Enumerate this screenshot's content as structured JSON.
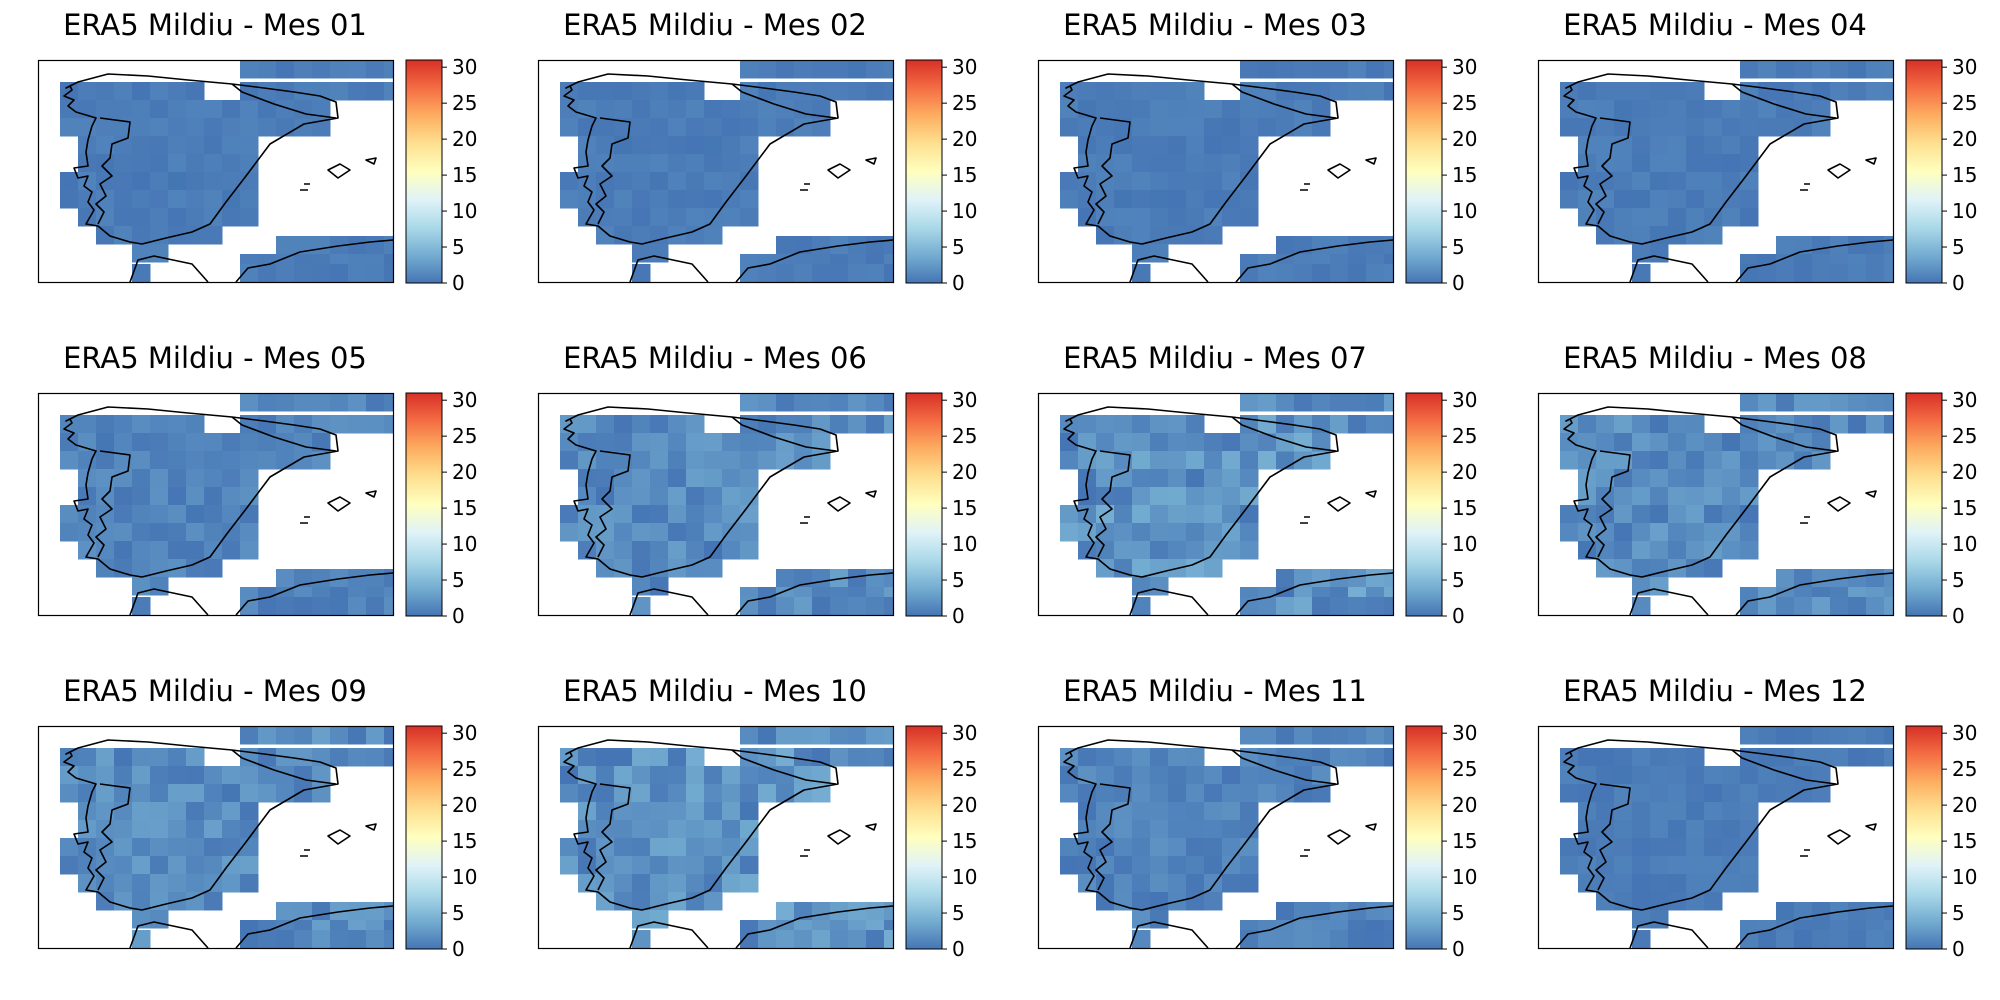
{
  "colors": {
    "background": "#ffffff",
    "coastline": "#000000",
    "colorbar_stops": [
      "#4575b4",
      "#74add1",
      "#abd9e9",
      "#e0f3f8",
      "#ffffbf",
      "#fee090",
      "#fdae61",
      "#f46d43",
      "#d73027"
    ]
  },
  "chart_data": [
    {
      "type": "heatmap",
      "title": "ERA5 Mildiu - Mes 01",
      "colorbar": {
        "ticks": [
          "0",
          "5",
          "10",
          "15",
          "20",
          "25",
          "30"
        ],
        "range": [
          0,
          31
        ]
      },
      "value_range_approx": [
        0,
        1
      ]
    },
    {
      "type": "heatmap",
      "title": "ERA5 Mildiu - Mes 02",
      "colorbar": {
        "ticks": [
          "0",
          "5",
          "10",
          "15",
          "20",
          "25",
          "30"
        ],
        "range": [
          0,
          31
        ]
      },
      "value_range_approx": [
        0,
        1
      ]
    },
    {
      "type": "heatmap",
      "title": "ERA5 Mildiu - Mes 03",
      "colorbar": {
        "ticks": [
          "0",
          "5",
          "10",
          "15",
          "20",
          "25",
          "30"
        ],
        "range": [
          0,
          31
        ]
      },
      "value_range_approx": [
        0,
        1
      ]
    },
    {
      "type": "heatmap",
      "title": "ERA5 Mildiu - Mes 04",
      "colorbar": {
        "ticks": [
          "0",
          "5",
          "10",
          "15",
          "20",
          "25",
          "30"
        ],
        "range": [
          0,
          31
        ]
      },
      "value_range_approx": [
        0,
        1
      ]
    },
    {
      "type": "heatmap",
      "title": "ERA5 Mildiu - Mes 05",
      "colorbar": {
        "ticks": [
          "0",
          "5",
          "10",
          "15",
          "20",
          "25",
          "30"
        ],
        "range": [
          0,
          31
        ]
      },
      "value_range_approx": [
        0,
        2
      ]
    },
    {
      "type": "heatmap",
      "title": "ERA5 Mildiu - Mes 06",
      "colorbar": {
        "ticks": [
          "0",
          "5",
          "10",
          "15",
          "20",
          "25",
          "30"
        ],
        "range": [
          0,
          31
        ]
      },
      "value_range_approx": [
        0,
        3
      ]
    },
    {
      "type": "heatmap",
      "title": "ERA5 Mildiu - Mes 07",
      "colorbar": {
        "ticks": [
          "0",
          "5",
          "10",
          "15",
          "20",
          "25",
          "30"
        ],
        "range": [
          0,
          31
        ]
      },
      "value_range_approx": [
        0,
        4
      ]
    },
    {
      "type": "heatmap",
      "title": "ERA5 Mildiu - Mes 08",
      "colorbar": {
        "ticks": [
          "0",
          "5",
          "10",
          "15",
          "20",
          "25",
          "30"
        ],
        "range": [
          0,
          31
        ]
      },
      "value_range_approx": [
        0,
        3
      ]
    },
    {
      "type": "heatmap",
      "title": "ERA5 Mildiu - Mes 09",
      "colorbar": {
        "ticks": [
          "0",
          "5",
          "10",
          "15",
          "20",
          "25",
          "30"
        ],
        "range": [
          0,
          31
        ]
      },
      "value_range_approx": [
        0,
        3
      ]
    },
    {
      "type": "heatmap",
      "title": "ERA5 Mildiu - Mes 10",
      "colorbar": {
        "ticks": [
          "0",
          "5",
          "10",
          "15",
          "20",
          "25",
          "30"
        ],
        "range": [
          0,
          31
        ]
      },
      "value_range_approx": [
        0,
        4
      ]
    },
    {
      "type": "heatmap",
      "title": "ERA5 Mildiu - Mes 11",
      "colorbar": {
        "ticks": [
          "0",
          "5",
          "10",
          "15",
          "20",
          "25",
          "30"
        ],
        "range": [
          0,
          31
        ]
      },
      "value_range_approx": [
        0,
        2
      ]
    },
    {
      "type": "heatmap",
      "title": "ERA5 Mildiu - Mes 12",
      "colorbar": {
        "ticks": [
          "0",
          "5",
          "10",
          "15",
          "20",
          "25",
          "30"
        ],
        "range": [
          0,
          31
        ]
      },
      "value_range_approx": [
        0,
        1
      ]
    }
  ]
}
